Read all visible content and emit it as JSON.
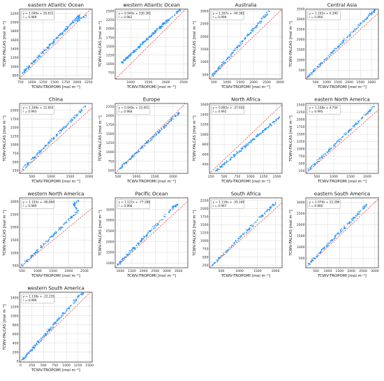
{
  "figure": {
    "x_label": "TCWV-TROPOMI [mol m⁻²]",
    "y_label": "TCWV-FALCAS [mol m⁻²]",
    "point_color": "#1e90ff",
    "line_color": "#e8261f"
  },
  "chart_data": [
    {
      "type": "scatter",
      "title": "eastern Atlantic Ocean",
      "annotation": [
        "y = 1.040x + 26.631",
        "r = 0.989"
      ],
      "xlim": [
        730,
        2330
      ],
      "ylim": [
        720,
        2300
      ],
      "xticks": [
        750,
        1000,
        1250,
        1500,
        1750,
        2000,
        2250
      ],
      "yticks": [
        800,
        1000,
        1200,
        1400,
        1600,
        1800,
        2000,
        2200
      ],
      "fit": {
        "slope": 1.04,
        "intercept": 26.631
      },
      "points": [
        [
          800,
          855
        ],
        [
          870,
          935
        ],
        [
          950,
          1015
        ],
        [
          1050,
          1120
        ],
        [
          1150,
          1220
        ],
        [
          1250,
          1330
        ],
        [
          1350,
          1430
        ],
        [
          1450,
          1535
        ],
        [
          1550,
          1640
        ],
        [
          1650,
          1745
        ],
        [
          1750,
          1845
        ],
        [
          1850,
          1955
        ],
        [
          1950,
          2050
        ],
        [
          2050,
          2160
        ],
        [
          2000,
          2030
        ],
        [
          2200,
          2150
        ]
      ]
    },
    {
      "type": "scatter",
      "title": "western Atlantic Ocean",
      "annotation": [
        "y = 0.940x + 330.391",
        "r = 0.982"
      ],
      "xlim": [
        560,
        2620
      ],
      "ylim": [
        570,
        2560
      ],
      "xticks": [
        1000,
        1500,
        2000,
        2500
      ],
      "yticks": [
        750,
        1000,
        1250,
        1500,
        1750,
        2000,
        2250,
        2500
      ],
      "fit": {
        "slope": 0.94,
        "intercept": 330.391
      },
      "points": [
        [
          750,
          1030
        ],
        [
          850,
          1130
        ],
        [
          950,
          1220
        ],
        [
          1050,
          1320
        ],
        [
          1150,
          1400
        ],
        [
          1250,
          1500
        ],
        [
          1350,
          1600
        ],
        [
          1450,
          1690
        ],
        [
          1550,
          1780
        ],
        [
          1650,
          1880
        ],
        [
          1750,
          1970
        ],
        [
          1850,
          2050
        ],
        [
          1950,
          2150
        ],
        [
          2050,
          2230
        ],
        [
          2250,
          2400
        ],
        [
          2400,
          2550
        ]
      ]
    },
    {
      "type": "scatter",
      "title": "Australia",
      "annotation": [
        "y = 1.167x + -40.382",
        "r = 0.999"
      ],
      "xlim": [
        330,
        3080
      ],
      "ylim": [
        330,
        3080
      ],
      "xticks": [
        500,
        1000,
        1500,
        2000,
        2500,
        3000
      ],
      "yticks": [
        500,
        1000,
        1500,
        2000,
        2500,
        3000
      ],
      "fit": {
        "slope": 1.167,
        "intercept": -40.382
      },
      "points": [
        [
          450,
          485
        ],
        [
          600,
          660
        ],
        [
          800,
          890
        ],
        [
          1000,
          1125
        ],
        [
          1200,
          1360
        ],
        [
          1400,
          1595
        ],
        [
          1600,
          1830
        ],
        [
          1800,
          2060
        ],
        [
          2000,
          2295
        ],
        [
          2200,
          2530
        ],
        [
          2400,
          2760
        ],
        [
          2600,
          2990
        ]
      ]
    },
    {
      "type": "scatter",
      "title": "Central Asia",
      "annotation": [
        "y = 1.102x + 6.390",
        "r = 0.994"
      ],
      "xlim": [
        60,
        3300
      ],
      "ylim": [
        60,
        3500
      ],
      "xticks": [
        500,
        1000,
        1500,
        2000,
        2500,
        3000
      ],
      "yticks": [
        500,
        1000,
        1500,
        2000,
        2500,
        3000,
        3500
      ],
      "fit": {
        "slope": 1.102,
        "intercept": 6.39
      },
      "points": [
        [
          150,
          170
        ],
        [
          400,
          450
        ],
        [
          700,
          780
        ],
        [
          1000,
          1110
        ],
        [
          1300,
          1440
        ],
        [
          1600,
          1770
        ],
        [
          1900,
          2100
        ],
        [
          2200,
          2430
        ],
        [
          2500,
          2760
        ],
        [
          2800,
          3090
        ],
        [
          3000,
          3310
        ],
        [
          3150,
          3450
        ]
      ]
    },
    {
      "type": "scatter",
      "title": "China",
      "annotation": [
        "y = 1.109x + 12.655",
        "r = 0.993"
      ],
      "xlim": [
        170,
        2080
      ],
      "ylim": [
        170,
        2200
      ],
      "xticks": [
        500,
        1000,
        1500,
        2000
      ],
      "yticks": [
        250,
        500,
        750,
        1000,
        1250,
        1500,
        1750,
        2000
      ],
      "fit": {
        "slope": 1.109,
        "intercept": 12.655
      },
      "points": [
        [
          250,
          290
        ],
        [
          400,
          455
        ],
        [
          550,
          620
        ],
        [
          700,
          790
        ],
        [
          850,
          955
        ],
        [
          1000,
          1120
        ],
        [
          1150,
          1290
        ],
        [
          1300,
          1455
        ],
        [
          1450,
          1620
        ],
        [
          1600,
          1790
        ],
        [
          1750,
          1955
        ],
        [
          1900,
          2120
        ]
      ]
    },
    {
      "type": "scatter",
      "title": "Europe",
      "annotation": [
        "y = 0.949x + 33.001",
        "r = 0.968"
      ],
      "xlim": [
        420,
        2400
      ],
      "ylim": [
        420,
        2330
      ],
      "xticks": [
        500,
        1000,
        1500,
        2000
      ],
      "yticks": [
        500,
        750,
        1000,
        1250,
        1500,
        1750,
        2000,
        2250
      ],
      "fit": {
        "slope": 0.949,
        "intercept": 33.001
      },
      "points": [
        [
          550,
          560
        ],
        [
          700,
          700
        ],
        [
          850,
          840
        ],
        [
          1000,
          980
        ],
        [
          1150,
          1130
        ],
        [
          1300,
          1270
        ],
        [
          1450,
          1410
        ],
        [
          1600,
          1550
        ],
        [
          1750,
          1690
        ],
        [
          1900,
          1840
        ],
        [
          2050,
          1980
        ],
        [
          2150,
          2080
        ]
      ]
    },
    {
      "type": "scatter",
      "title": "North Africa",
      "annotation": [
        "y = 0.892x + -37.932",
        "r = 0.992"
      ],
      "xlim": [
        220,
        1600
      ],
      "ylim": [
        220,
        1620
      ],
      "xticks": [
        250,
        500,
        750,
        1000,
        1250,
        1500
      ],
      "yticks": [
        400,
        600,
        800,
        1000,
        1200,
        1400,
        1600
      ],
      "fit": {
        "slope": 0.892,
        "intercept": -37.932
      },
      "points": [
        [
          350,
          275
        ],
        [
          450,
          365
        ],
        [
          550,
          455
        ],
        [
          650,
          540
        ],
        [
          750,
          630
        ],
        [
          850,
          720
        ],
        [
          950,
          810
        ],
        [
          1050,
          900
        ],
        [
          1150,
          990
        ],
        [
          1250,
          1075
        ],
        [
          1350,
          1165
        ],
        [
          1450,
          1255
        ],
        [
          1550,
          1345
        ]
      ]
    },
    {
      "type": "scatter",
      "title": "eastern North America",
      "annotation": [
        "y = 1.108x + 4.754",
        "r = 0.995"
      ],
      "xlim": [
        170,
        2330
      ],
      "ylim": [
        170,
        2550
      ],
      "xticks": [
        500,
        1000,
        1500,
        2000
      ],
      "yticks": [
        250,
        500,
        750,
        1000,
        1250,
        1500,
        1750,
        2000,
        2250,
        2500
      ],
      "fit": {
        "slope": 1.108,
        "intercept": 4.754
      },
      "points": [
        [
          250,
          285
        ],
        [
          450,
          505
        ],
        [
          650,
          725
        ],
        [
          850,
          945
        ],
        [
          1050,
          1170
        ],
        [
          1250,
          1390
        ],
        [
          1450,
          1610
        ],
        [
          1650,
          1835
        ],
        [
          1850,
          2055
        ],
        [
          2050,
          2275
        ],
        [
          2200,
          2440
        ]
      ]
    },
    {
      "type": "scatter",
      "title": "western North America",
      "annotation": [
        "y = 1.193x + -96.894",
        "r = 0.989"
      ],
      "xlim": [
        420,
        2750
      ],
      "ylim": [
        420,
        3150
      ],
      "xticks": [
        500,
        1000,
        1500,
        2000,
        2500
      ],
      "yticks": [
        500,
        1000,
        1500,
        2000,
        2500,
        3000
      ],
      "fit": {
        "slope": 1.193,
        "intercept": -96.894
      },
      "points": [
        [
          500,
          500
        ],
        [
          700,
          740
        ],
        [
          900,
          975
        ],
        [
          1100,
          1215
        ],
        [
          1300,
          1455
        ],
        [
          1500,
          1690
        ],
        [
          1700,
          1930
        ],
        [
          1900,
          2170
        ],
        [
          2100,
          2410
        ],
        [
          2300,
          2650
        ],
        [
          2150,
          2900
        ],
        [
          2300,
          3050
        ]
      ]
    },
    {
      "type": "scatter",
      "title": "Pacific Ocean",
      "annotation": [
        "y = 1.121x + -77.288",
        "r = 0.998"
      ],
      "xlim": [
        780,
        3900
      ],
      "ylim": [
        780,
        4050
      ],
      "xticks": [
        1000,
        1500,
        2000,
        2500,
        3000,
        3500
      ],
      "yticks": [
        1000,
        1500,
        2000,
        2500,
        3000,
        3500
      ],
      "fit": {
        "slope": 1.121,
        "intercept": -77.288
      },
      "points": [
        [
          900,
          930
        ],
        [
          1100,
          1155
        ],
        [
          1300,
          1380
        ],
        [
          1500,
          1605
        ],
        [
          1700,
          1830
        ],
        [
          1900,
          2050
        ],
        [
          2100,
          2275
        ],
        [
          2300,
          2500
        ],
        [
          2600,
          2840
        ],
        [
          3100,
          3400
        ],
        [
          3300,
          3650
        ],
        [
          3450,
          3720
        ]
      ]
    },
    {
      "type": "scatter",
      "title": "South Africa",
      "annotation": [
        "y = 1.116x + -39.169",
        "r = 0.997"
      ],
      "xlim": [
        170,
        2180
      ],
      "ylim": [
        170,
        2330
      ],
      "xticks": [
        500,
        1000,
        1500,
        2000
      ],
      "yticks": [
        250,
        500,
        750,
        1000,
        1250,
        1500,
        1750,
        2000,
        2250
      ],
      "fit": {
        "slope": 1.116,
        "intercept": -39.169
      },
      "points": [
        [
          250,
          240
        ],
        [
          450,
          465
        ],
        [
          650,
          685
        ],
        [
          850,
          910
        ],
        [
          1050,
          1130
        ],
        [
          1250,
          1355
        ],
        [
          1450,
          1580
        ],
        [
          1650,
          1800
        ],
        [
          1850,
          2025
        ],
        [
          2000,
          2190
        ]
      ]
    },
    {
      "type": "scatter",
      "title": "eastern South America",
      "annotation": [
        "y = 1.079x + 22.286",
        "r = 0.990"
      ],
      "xlim": [
        70,
        3150
      ],
      "ylim": [
        70,
        3200
      ],
      "xticks": [
        500,
        1000,
        1500,
        2000,
        2500,
        3000
      ],
      "yticks": [
        500,
        1000,
        1500,
        2000,
        2500,
        3000
      ],
      "fit": {
        "slope": 1.079,
        "intercept": 22.286
      },
      "points": [
        [
          200,
          240
        ],
        [
          450,
          505
        ],
        [
          700,
          780
        ],
        [
          950,
          1050
        ],
        [
          1200,
          1320
        ],
        [
          1450,
          1590
        ],
        [
          1700,
          1855
        ],
        [
          1950,
          2125
        ],
        [
          2200,
          2395
        ],
        [
          2500,
          2720
        ],
        [
          2650,
          2900
        ]
      ]
    },
    {
      "type": "scatter",
      "title": "western South America",
      "annotation": [
        "y = 1.138x + -22.235",
        "r = 0.996"
      ],
      "xlim": [
        -20,
        1560
      ],
      "ylim": [
        -20,
        1520
      ],
      "xticks": [
        0,
        250,
        500,
        750,
        1000,
        1250,
        1500
      ],
      "yticks": [
        0,
        200,
        400,
        600,
        800,
        1000,
        1200,
        1400
      ],
      "fit": {
        "slope": 1.138,
        "intercept": -22.235
      },
      "points": [
        [
          50,
          35
        ],
        [
          150,
          150
        ],
        [
          250,
          262
        ],
        [
          350,
          375
        ],
        [
          450,
          490
        ],
        [
          550,
          605
        ],
        [
          650,
          717
        ],
        [
          750,
          830
        ],
        [
          850,
          945
        ],
        [
          950,
          1060
        ],
        [
          1100,
          1230
        ],
        [
          1250,
          1400
        ],
        [
          1350,
          1500
        ]
      ]
    }
  ]
}
